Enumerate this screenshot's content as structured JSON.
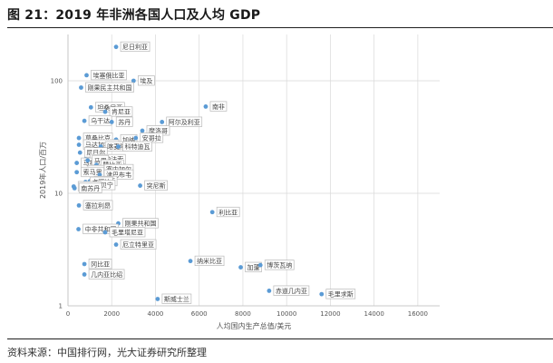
{
  "title": "图 21：2019 年非洲各国人口及人均 GDP",
  "source": "资料来源：中国排行网，光大证券研究所整理",
  "colors": {
    "point": "#5b9bd5",
    "grid": "#d9d9d9",
    "axis": "#bfbfbf"
  },
  "chart_data": {
    "type": "scatter",
    "title": "",
    "xlabel": "人均国内生产总值/美元",
    "ylabel": "2019年人口/百万",
    "xlim": [
      0,
      17000
    ],
    "ylim": [
      1,
      200
    ],
    "y_scale": "log",
    "grid": true,
    "x_ticks": [
      0,
      2000,
      4000,
      6000,
      8000,
      10000,
      12000,
      14000,
      16000
    ],
    "y_ticks": [
      1,
      10,
      100
    ],
    "points": [
      {
        "label": "尼日利亚",
        "x": 2200,
        "y": 200
      },
      {
        "label": "埃塞俄比亚",
        "x": 850,
        "y": 112
      },
      {
        "label": "埃及",
        "x": 3000,
        "y": 100
      },
      {
        "label": "刚果民主共和国",
        "x": 600,
        "y": 87
      },
      {
        "label": "南非",
        "x": 6300,
        "y": 59
      },
      {
        "label": "坦桑尼亚",
        "x": 1050,
        "y": 58
      },
      {
        "label": "肯尼亚",
        "x": 1700,
        "y": 53
      },
      {
        "label": "乌干达",
        "x": 750,
        "y": 44
      },
      {
        "label": "苏丹",
        "x": 2000,
        "y": 43
      },
      {
        "label": "阿尔及利亚",
        "x": 4300,
        "y": 43
      },
      {
        "label": "摩洛哥",
        "x": 3400,
        "y": 36
      },
      {
        "label": "莫桑比克",
        "x": 500,
        "y": 31
      },
      {
        "label": "加纳",
        "x": 2200,
        "y": 30
      },
      {
        "label": "安哥拉",
        "x": 3100,
        "y": 31
      },
      {
        "label": "马达加斯加",
        "x": 500,
        "y": 27
      },
      {
        "label": "喀麦隆",
        "x": 1500,
        "y": 26
      },
      {
        "label": "科特迪瓦",
        "x": 2300,
        "y": 26
      },
      {
        "label": "尼日尔",
        "x": 550,
        "y": 23
      },
      {
        "label": "布基纳法索",
        "x": 800,
        "y": 20
      },
      {
        "label": "马拉维",
        "x": 400,
        "y": 18.6
      },
      {
        "label": "马里",
        "x": 900,
        "y": 19.6
      },
      {
        "label": "赞比亚",
        "x": 1300,
        "y": 17.9
      },
      {
        "label": "塞内加尔",
        "x": 1450,
        "y": 16.3
      },
      {
        "label": "乍得",
        "x": 700,
        "y": 16
      },
      {
        "label": "索马里",
        "x": 400,
        "y": 15.4
      },
      {
        "label": "津巴布韦",
        "x": 1450,
        "y": 14.6
      },
      {
        "label": "几内亚",
        "x": 1000,
        "y": 12.8
      },
      {
        "label": "卢旺达",
        "x": 800,
        "y": 12.6
      },
      {
        "label": "贝宁",
        "x": 1200,
        "y": 11.8
      },
      {
        "label": "布隆迪",
        "x": 260,
        "y": 11.5
      },
      {
        "label": "突尼斯",
        "x": 3300,
        "y": 11.7
      },
      {
        "label": "南苏丹",
        "x": 300,
        "y": 11.1
      },
      {
        "label": "塞拉利昂",
        "x": 500,
        "y": 7.8
      },
      {
        "label": "利比亚",
        "x": 6600,
        "y": 6.8
      },
      {
        "label": "刚果共和国",
        "x": 2300,
        "y": 5.4
      },
      {
        "label": "中非共和国",
        "x": 480,
        "y": 4.8
      },
      {
        "label": "毛里塔尼亚",
        "x": 1700,
        "y": 4.5
      },
      {
        "label": "厄立特里亚",
        "x": 2200,
        "y": 3.5
      },
      {
        "label": "纳米比亚",
        "x": 5600,
        "y": 2.5
      },
      {
        "label": "加蓬",
        "x": 7900,
        "y": 2.2
      },
      {
        "label": "博茨瓦纳",
        "x": 8800,
        "y": 2.3
      },
      {
        "label": "冈比亚",
        "x": 750,
        "y": 2.35
      },
      {
        "label": "几内亚比绍",
        "x": 750,
        "y": 1.9
      },
      {
        "label": "赤道几内亚",
        "x": 9200,
        "y": 1.36
      },
      {
        "label": "毛里求斯",
        "x": 11600,
        "y": 1.27
      },
      {
        "label": "斯威士兰",
        "x": 4100,
        "y": 1.15
      }
    ]
  }
}
